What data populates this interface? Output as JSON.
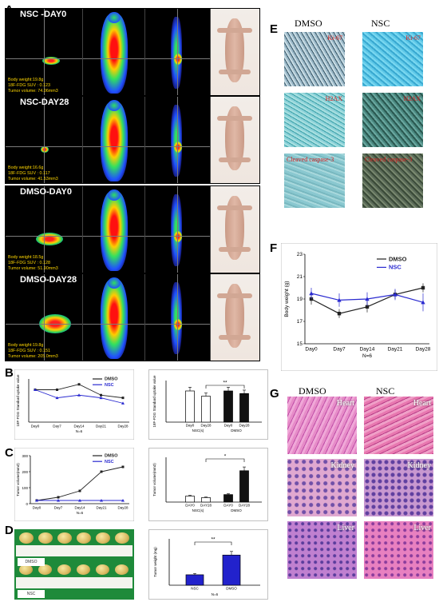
{
  "panels": {
    "A": "A",
    "B": "B",
    "C": "C",
    "D": "D",
    "E": "E",
    "F": "F",
    "G": "G"
  },
  "pet_rows": [
    {
      "title": "NSC -DAY0",
      "info": [
        "Body weight:19.8g",
        "18F-FDG SUV : 0.123",
        "Tumor volume: 74.06mm3"
      ]
    },
    {
      "title": "NSC-DAY28",
      "info": [
        "Body weight:16.6g",
        "18F-FDG SUV : 0.117",
        "Tumor volume: 41.53mm3"
      ]
    },
    {
      "title": "DMSO-DAY0",
      "info": [
        "Body weight:18.5g",
        "18F-FDG SUV : 0.128",
        "Tumor volume: 51.90mm3"
      ]
    },
    {
      "title": "DMSO-DAY28",
      "info": [
        "Body weight:19.8g",
        "18F-FDG SUV : 0.151",
        "Tumor volume: 205.0mm3"
      ]
    }
  ],
  "panel_e": {
    "col_dmso": "DMSO",
    "col_nsc": "NSC",
    "rows": [
      {
        "dmso": "Ki-67",
        "nsc": "Ki-67"
      },
      {
        "dmso": "H2AX",
        "nsc": "H2AX"
      },
      {
        "dmso": "Cleaved caspase-3",
        "nsc": "Cleaved caspase-3"
      }
    ]
  },
  "panel_g": {
    "col_dmso": "DMSO",
    "col_nsc": "NSC",
    "rows": [
      {
        "dmso": "Heart",
        "nsc": "Heart"
      },
      {
        "dmso": "Kidney",
        "nsc": "Kidney"
      },
      {
        "dmso": "Liver",
        "nsc": "Liver"
      }
    ]
  },
  "panel_d": {
    "label_top": "DMSO",
    "label_bottom": "NSC"
  },
  "chart_data": [
    {
      "id": "F",
      "type": "line",
      "title": "",
      "xlabel": "N=6",
      "ylabel": "Body weight (g)",
      "x": [
        "Day0",
        "Day7",
        "Day14",
        "Day21",
        "Day28"
      ],
      "ylim": [
        15,
        23
      ],
      "yticks": [
        15,
        17,
        19,
        21,
        23
      ],
      "legend_position": "top-right",
      "series": [
        {
          "name": "DMSO",
          "color": "#222222",
          "values": [
            19.0,
            17.7,
            18.3,
            19.4,
            20.0
          ],
          "err": [
            0.5,
            0.4,
            0.5,
            0.4,
            0.4
          ]
        },
        {
          "name": "NSC",
          "color": "#2a2ad0",
          "values": [
            19.5,
            18.9,
            19.0,
            19.4,
            18.7
          ],
          "err": [
            0.5,
            0.6,
            0.6,
            0.5,
            0.8
          ]
        }
      ]
    },
    {
      "id": "B-left",
      "type": "line",
      "xlabel": "N=6",
      "ylabel": "18F-FDG Standard uptake value",
      "x": [
        "Day0",
        "Day7",
        "Day14",
        "Day21",
        "Day28"
      ],
      "ylim": [
        0,
        0.16
      ],
      "legend_position": "top-right",
      "series": [
        {
          "name": "DMSO",
          "color": "#222222",
          "values": [
            0.12,
            0.12,
            0.14,
            0.1,
            0.09
          ]
        },
        {
          "name": "NSC",
          "color": "#2a2ad0",
          "values": [
            0.12,
            0.09,
            0.1,
            0.09,
            0.07
          ]
        }
      ]
    },
    {
      "id": "B-right",
      "type": "bar",
      "ylabel": "18F-FDG Standard uptake value",
      "categories": [
        "Day0",
        "Day28",
        "Day0",
        "Day28"
      ],
      "groups": [
        "NSC(s)",
        "DMSO"
      ],
      "values": [
        0.12,
        0.1,
        0.12,
        0.11
      ],
      "colors": [
        "#ffffff",
        "#ffffff",
        "#111111",
        "#111111"
      ],
      "annotation": "**"
    },
    {
      "id": "C-left",
      "type": "line",
      "xlabel": "N=6",
      "ylabel": "Tumor volume(mm3)",
      "x": [
        "Day0",
        "Day7",
        "Day14",
        "Day21",
        "Day28"
      ],
      "ylim": [
        0,
        300
      ],
      "yticks": [
        0,
        100,
        200,
        300
      ],
      "legend_position": "top-right",
      "series": [
        {
          "name": "DMSO",
          "color": "#222222",
          "values": [
            20,
            40,
            80,
            200,
            230
          ]
        },
        {
          "name": "NSC",
          "color": "#2a2ad0",
          "values": [
            20,
            20,
            20,
            20,
            20
          ]
        }
      ]
    },
    {
      "id": "C-right",
      "type": "bar",
      "ylabel": "Tumor volume(mm3)",
      "categories": [
        "DAY0",
        "DAY28",
        "DAY0",
        "DAY28"
      ],
      "groups": [
        "NSC(s)",
        "DMSO"
      ],
      "values": [
        40,
        30,
        50,
        210
      ],
      "colors": [
        "#ffffff",
        "#ffffff",
        "#111111",
        "#111111"
      ],
      "annotation": "*"
    },
    {
      "id": "D-right",
      "type": "bar",
      "ylabel": "Tumor weight (mg)",
      "xlabel": "N=6",
      "categories": [
        "NSC",
        "DMSO"
      ],
      "values": [
        180,
        520
      ],
      "colors": [
        "#2222cc",
        "#2222cc"
      ],
      "annotation": "**"
    }
  ]
}
